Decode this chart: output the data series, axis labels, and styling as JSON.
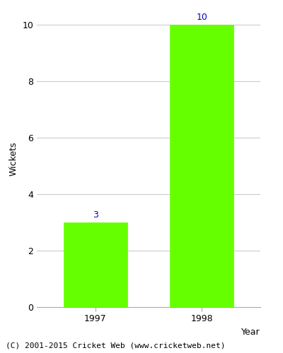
{
  "categories": [
    "1997",
    "1998"
  ],
  "values": [
    3,
    10
  ],
  "bar_color": "#66ff00",
  "bar_edge_color": "#66ff00",
  "xlabel": "Year",
  "ylabel": "Wickets",
  "ylim": [
    0,
    10.5
  ],
  "yticks": [
    0,
    2,
    4,
    6,
    8,
    10
  ],
  "label_color": "#0000cc",
  "label_fontsize": 9,
  "axis_label_fontsize": 9,
  "tick_fontsize": 9,
  "footer_text": "(C) 2001-2015 Cricket Web (www.cricketweb.net)",
  "footer_fontsize": 8,
  "background_color": "#ffffff",
  "grid_color": "#cccccc",
  "bar_width": 0.6
}
